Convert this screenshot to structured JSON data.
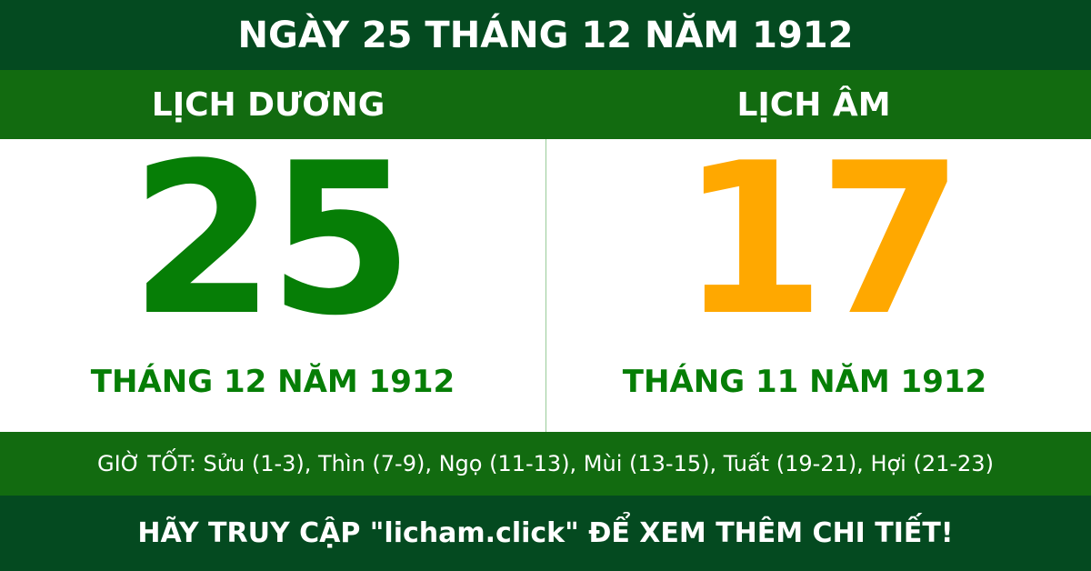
{
  "title": "NGÀY 25 THÁNG 12 NĂM 1912",
  "solar": {
    "label": "LỊCH DƯƠNG",
    "day": "25",
    "month_year": "THÁNG 12 NĂM 1912"
  },
  "lunar": {
    "label": "LỊCH ÂM",
    "day": "17",
    "month_year": "THÁNG 11 NĂM 1912"
  },
  "good_hours": "GIỜ TỐT: Sửu (1-3), Thìn (7-9), Ngọ (11-13), Mùi (13-15), Tuất (19-21), Hợi (21-23)",
  "footer": "HÃY TRUY CẬP \"licham.click\" ĐỂ XEM THÊM CHI TIẾT!",
  "colors": {
    "dark_green": "#044a20",
    "green": "#126b10",
    "solar_day": "#067e06",
    "lunar_day": "#ffa800"
  }
}
